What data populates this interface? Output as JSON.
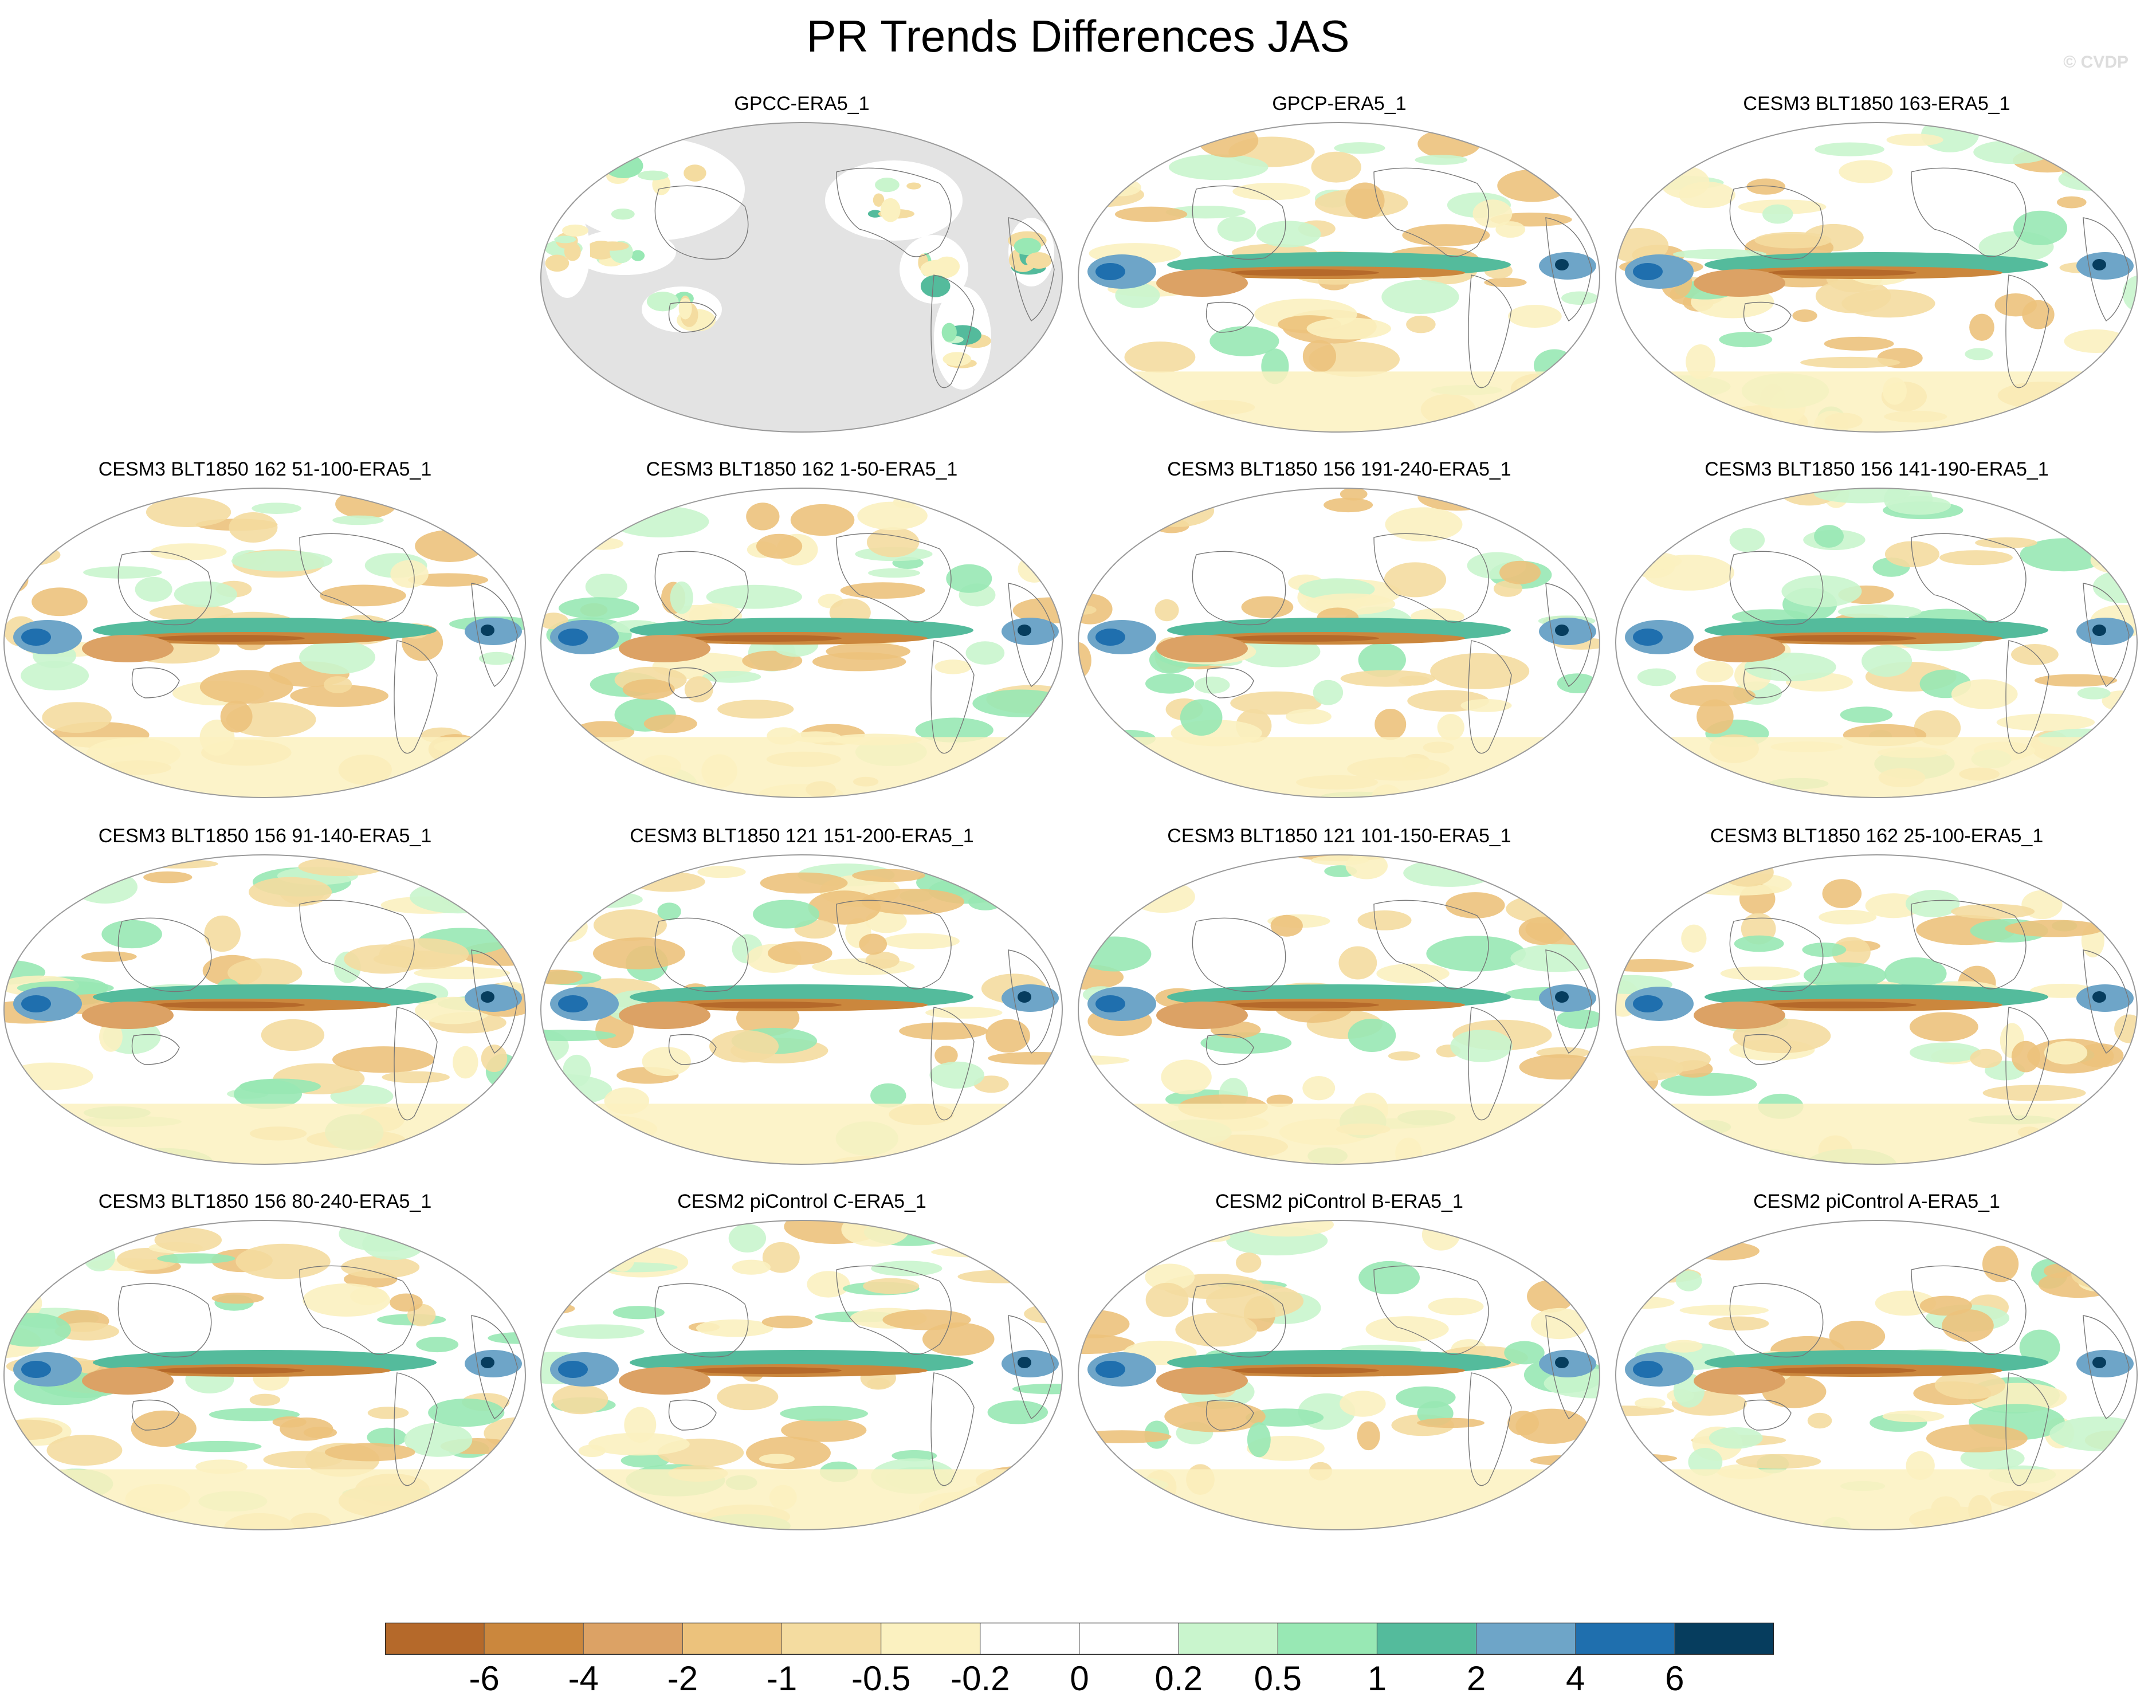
{
  "title": "PR Trends Differences JAS",
  "watermark": "© CVDP",
  "panels": [
    {
      "label": "GPCC-ERA5_1",
      "style": "obs"
    },
    {
      "label": "GPCP-ERA5_1",
      "style": "field"
    },
    {
      "label": "CESM3 BLT1850 163-ERA5_1",
      "style": "field"
    },
    {
      "label": "CESM3 BLT1850 162 51-100-ERA5_1",
      "style": "field"
    },
    {
      "label": "CESM3 BLT1850 162 1-50-ERA5_1",
      "style": "field"
    },
    {
      "label": "CESM3 BLT1850 156 191-240-ERA5_1",
      "style": "field"
    },
    {
      "label": "CESM3 BLT1850 156 141-190-ERA5_1",
      "style": "field"
    },
    {
      "label": "CESM3 BLT1850 156 91-140-ERA5_1",
      "style": "field"
    },
    {
      "label": "CESM3 BLT1850 121 151-200-ERA5_1",
      "style": "field"
    },
    {
      "label": "CESM3 BLT1850 121 101-150-ERA5_1",
      "style": "field"
    },
    {
      "label": "CESM3 BLT1850 162 25-100-ERA5_1",
      "style": "field"
    },
    {
      "label": "CESM3 BLT1850 156 80-240-ERA5_1",
      "style": "field"
    },
    {
      "label": "CESM2 piControl C-ERA5_1",
      "style": "field"
    },
    {
      "label": "CESM2 piControl B-ERA5_1",
      "style": "field"
    },
    {
      "label": "CESM2 piControl A-ERA5_1",
      "style": "field"
    }
  ],
  "colorbar": {
    "colors": [
      "#b5692a",
      "#cb873d",
      "#dca265",
      "#ecc27c",
      "#f4dca0",
      "#fbf1c0",
      "#ffffff",
      "#ffffff",
      "#c9f5cd",
      "#98e8b4",
      "#54bb9c",
      "#6ea5c8",
      "#1f6fae",
      "#063d5e"
    ],
    "labels": [
      "-6",
      "-4",
      "-2",
      "-1",
      "-0.5",
      "-0.2",
      "0",
      "0.2",
      "0.5",
      "1",
      "2",
      "4",
      "6"
    ]
  }
}
